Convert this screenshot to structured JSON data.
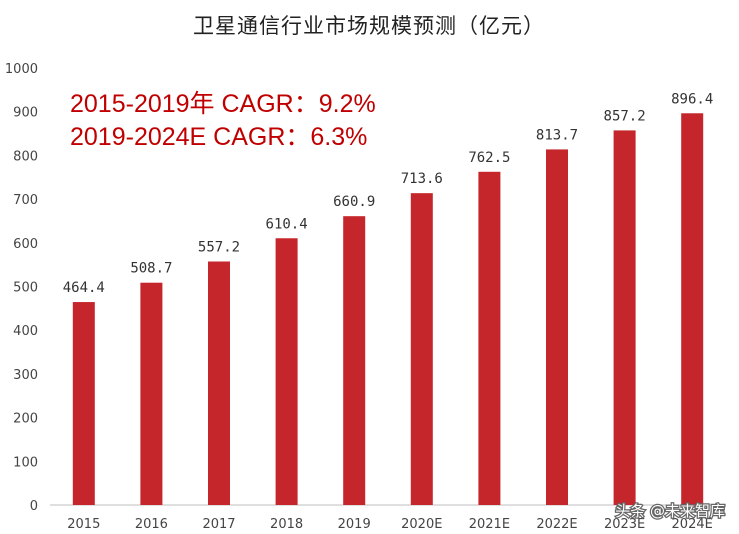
{
  "chart_data": {
    "type": "bar",
    "title": "卫星通信行业市场规模预测（亿元）",
    "categories": [
      "2015",
      "2016",
      "2017",
      "2018",
      "2019",
      "2020E",
      "2021E",
      "2022E",
      "2023E",
      "2024E"
    ],
    "values": [
      464.4,
      508.7,
      557.2,
      610.4,
      660.9,
      713.6,
      762.5,
      813.7,
      857.2,
      896.4
    ],
    "data_labels": [
      "464.4",
      "508.7",
      "557.2",
      "610.4",
      "660.9",
      "713.6",
      "762.5",
      "813.7",
      "857.2",
      "896.4"
    ],
    "ylim": [
      0,
      1000
    ],
    "yticks": [
      "0",
      "100",
      "200",
      "300",
      "400",
      "500",
      "600",
      "700",
      "800",
      "900",
      "1000"
    ],
    "xlabel": "",
    "ylabel": "",
    "grid": false,
    "bar_color": "#c5262b",
    "annotations": [
      "2015-2019年 CAGR：9.2%",
      "2019-2024E CAGR：6.3%"
    ],
    "annotation_color": "#c00000"
  },
  "watermark": "头条 @未来智库"
}
